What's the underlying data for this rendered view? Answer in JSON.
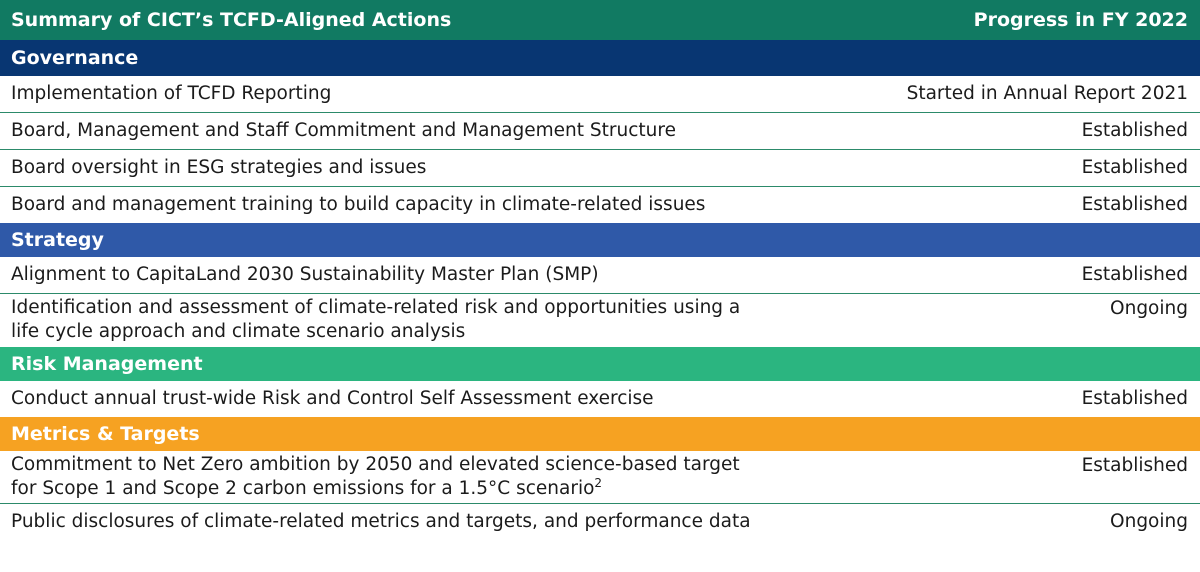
{
  "header": {
    "left": "Summary of CICT’s TCFD-Aligned Actions",
    "right": "Progress in FY 2022"
  },
  "colors": {
    "header": "#117a62",
    "governance": "#083672",
    "strategy": "#2f59a8",
    "risk_management": "#2bb580",
    "metrics_targets": "#f6a222"
  },
  "sections": [
    {
      "title": "Governance",
      "rows": [
        {
          "action": "Implementation of TCFD Reporting",
          "progress": "Started in Annual Report 2021"
        },
        {
          "action": "Board, Management and Staff Commitment and Management Structure",
          "progress": "Established"
        },
        {
          "action": "Board oversight in ESG strategies and issues",
          "progress": "Established"
        },
        {
          "action": "Board and management training to build capacity in climate-related issues",
          "progress": "Established"
        }
      ]
    },
    {
      "title": "Strategy",
      "rows": [
        {
          "action": "Alignment to CapitaLand 2030 Sustainability Master Plan  (SMP)",
          "progress": "Established"
        },
        {
          "action_line1": "Identification and assessment of climate-related risk and opportunities using a",
          "action_line2": "life cycle approach and climate scenario analysis",
          "progress": "Ongoing"
        }
      ]
    },
    {
      "title": "Risk Management",
      "rows": [
        {
          "action": "Conduct annual trust-wide Risk and Control Self Assessment exercise",
          "progress": "Established"
        }
      ]
    },
    {
      "title": "Metrics & Targets",
      "rows": [
        {
          "action_line1": "Commitment to Net Zero ambition by 2050 and elevated science-based target",
          "action_line2": "for  Scope 1 and Scope 2 carbon emissions for a 1.5°C scenario",
          "footnote": "2",
          "progress": "Established"
        },
        {
          "action": "Public disclosures of climate-related metrics and targets, and performance data",
          "progress": "Ongoing"
        }
      ]
    }
  ]
}
